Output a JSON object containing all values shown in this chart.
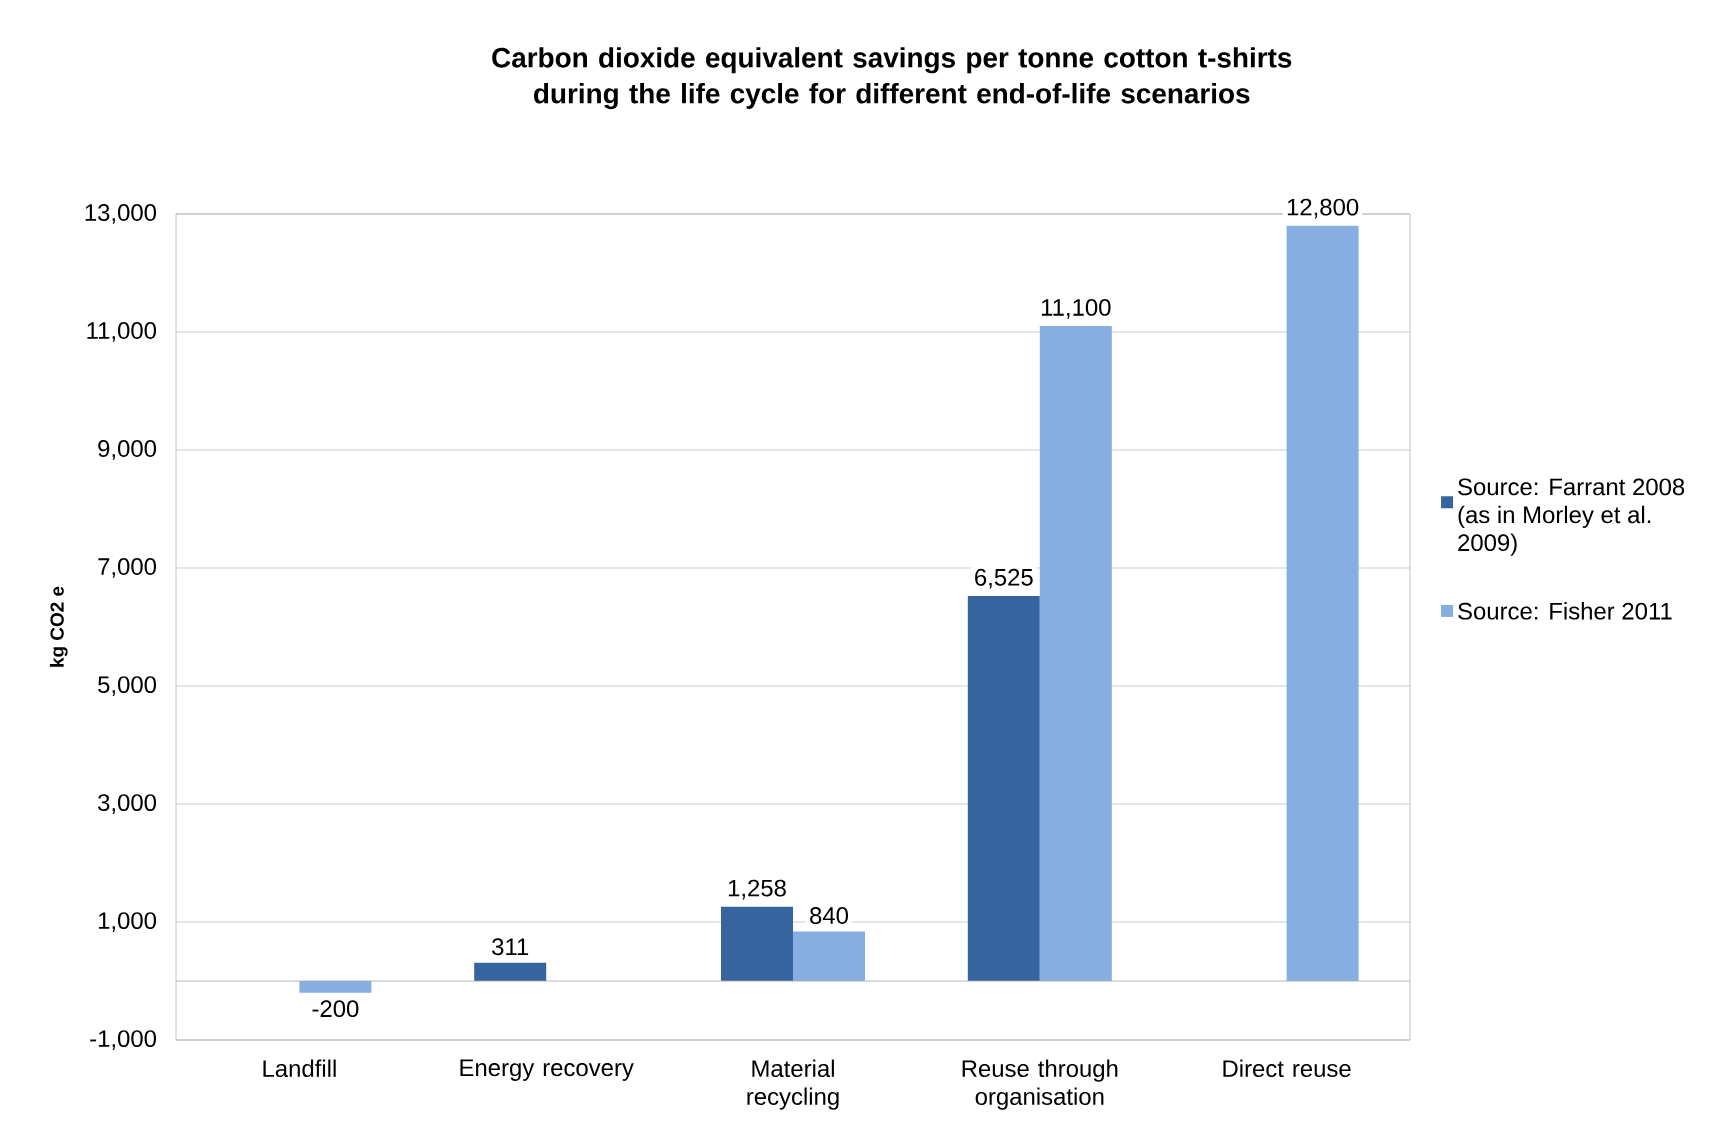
{
  "chart_data": {
    "type": "bar",
    "title": "Carbon dioxide equivalent savings per tonne cotton t-shirts during the life cycle for different end-of-life scenarios",
    "ylabel": "kg CO2 e",
    "categories": [
      "Landfill",
      "Energy recovery",
      "Material recycling",
      "Reuse through organisation",
      "Direct reuse"
    ],
    "series": [
      {
        "name": "Source: Farrant 2008 (as in Morley et al. 2009)",
        "color": "#35649e",
        "values": [
          null,
          311,
          1258,
          6525,
          null
        ],
        "value_labels": [
          null,
          "311",
          "1,258",
          "6,525",
          null
        ]
      },
      {
        "name": "Source: Fisher 2011",
        "color": "#86aee0",
        "values": [
          -200,
          null,
          840,
          11100,
          12800
        ],
        "value_labels": [
          "-200",
          null,
          "840",
          "11,100",
          "12,800"
        ]
      }
    ],
    "ylim": [
      -1000,
      13000
    ],
    "yticks": [
      {
        "value": -1000,
        "label": "-1,000"
      },
      {
        "value": 1000,
        "label": "1,000"
      },
      {
        "value": 3000,
        "label": "3,000"
      },
      {
        "value": 5000,
        "label": "5,000"
      },
      {
        "value": 7000,
        "label": "7,000"
      },
      {
        "value": 9000,
        "label": "9,000"
      },
      {
        "value": 11000,
        "label": "11,000"
      },
      {
        "value": 13000,
        "label": "13,000"
      }
    ],
    "grid": "y",
    "legend": "right"
  }
}
